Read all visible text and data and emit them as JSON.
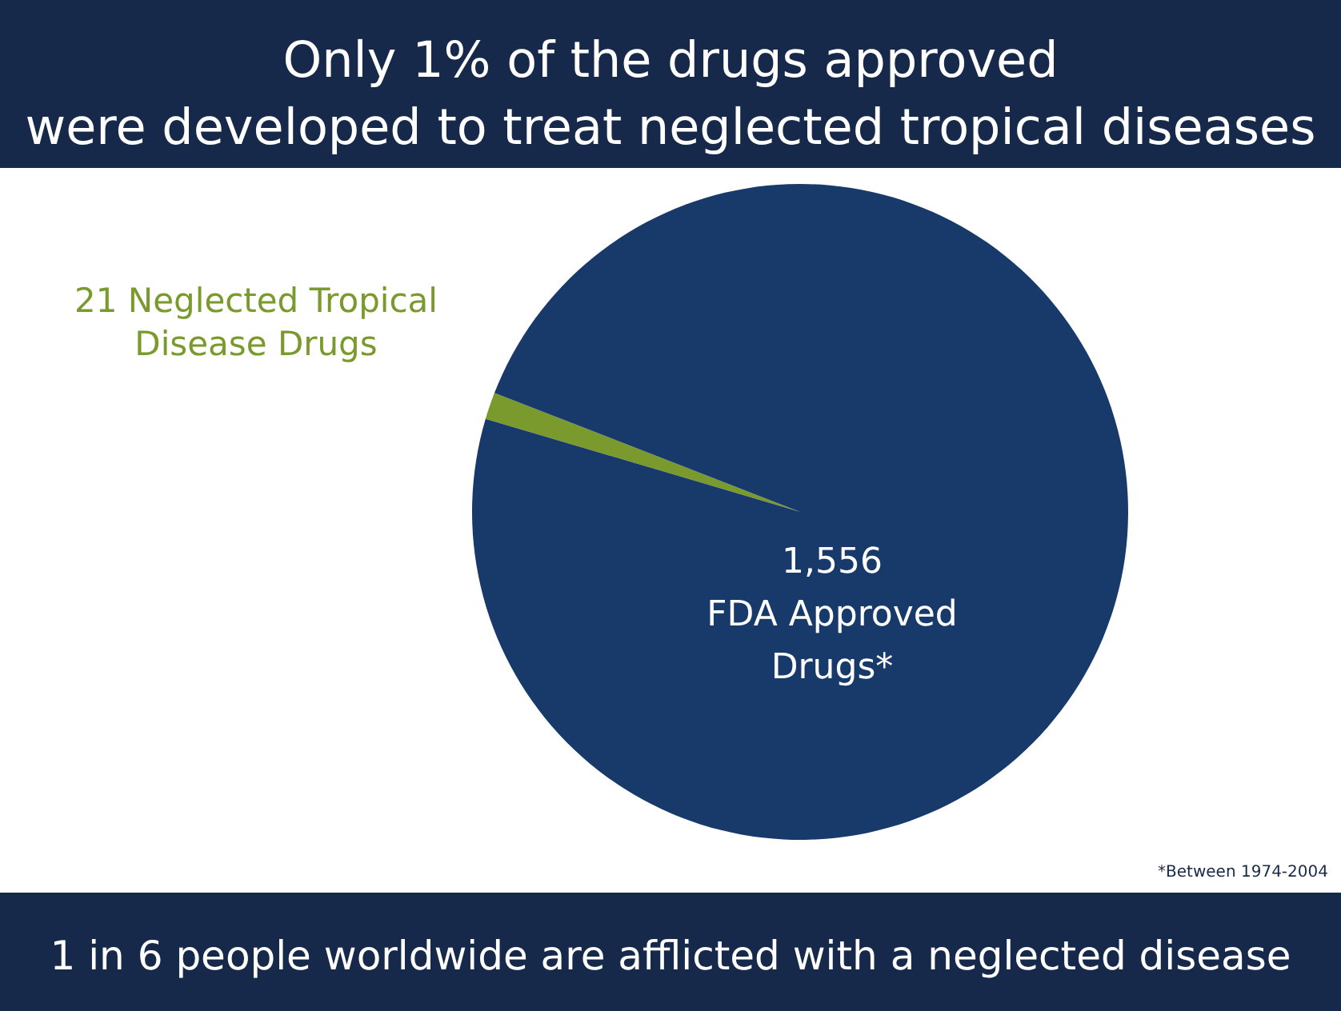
{
  "chart_data": {
    "type": "pie",
    "title": "Only 1% of the drugs approved were developed to treat neglected tropical diseases",
    "categories": [
      "Neglected Tropical Disease Drugs",
      "FDA Approved Drugs*"
    ],
    "values": [
      21,
      1556
    ],
    "value_labels": [
      "21",
      "1,556"
    ],
    "colors": [
      "#7a9a2e",
      "#173a6b"
    ],
    "annotations": [
      "*Between 1974-2004",
      "1 in 6 people worldwide are afflicted with a neglected disease"
    ]
  }
}
